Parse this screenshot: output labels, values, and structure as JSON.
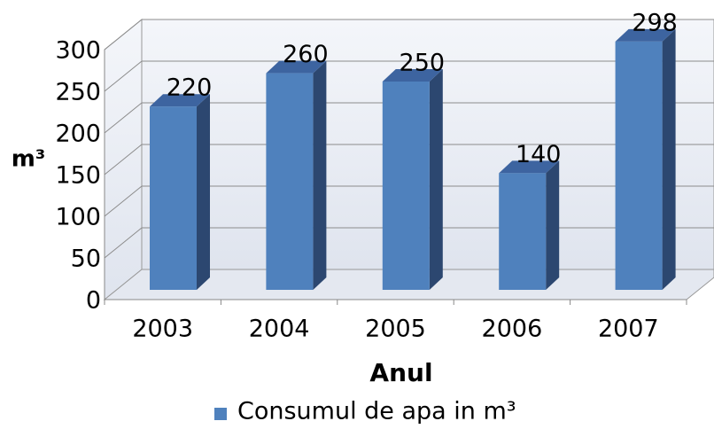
{
  "chart_data": {
    "type": "bar3d",
    "categories": [
      "2003",
      "2004",
      "2005",
      "2006",
      "2007"
    ],
    "series": [
      {
        "name": "Consumul de apa in m³",
        "color": "#4f81bd",
        "values": [
          220,
          260,
          250,
          140,
          298
        ]
      }
    ],
    "ylim": [
      0,
      300
    ],
    "yticks": [
      0,
      50,
      100,
      150,
      200,
      250,
      300
    ],
    "ylabel": "m³",
    "xlabel": "Anul",
    "grid": true,
    "legend": "bottom"
  }
}
